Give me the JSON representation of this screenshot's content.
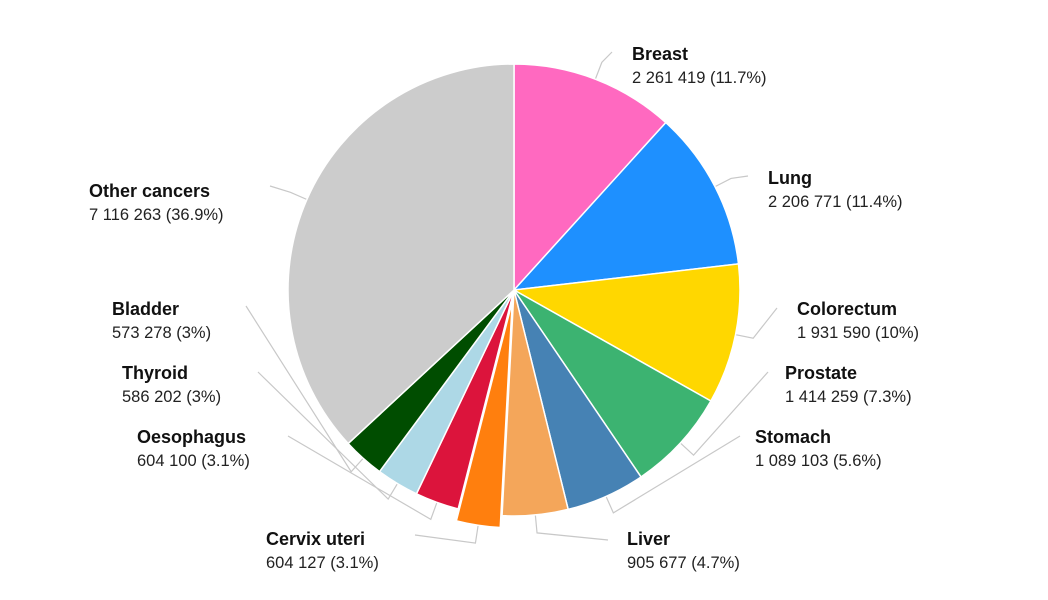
{
  "chart_data": {
    "type": "pie",
    "title": "",
    "start_angle": "top, clockwise",
    "slices": [
      {
        "name": "Breast",
        "value": 2261419,
        "label": "2 261 419 (11.7%)",
        "color": "#ff69c0"
      },
      {
        "name": "Lung",
        "value": 2206771,
        "label": "2 206 771 (11.4%)",
        "color": "#1e90ff"
      },
      {
        "name": "Colorectum",
        "value": 1931590,
        "label": "1 931 590 (10%)",
        "color": "#ffd700"
      },
      {
        "name": "Prostate",
        "value": 1414259,
        "label": "1 414 259 (7.3%)",
        "color": "#3cb371"
      },
      {
        "name": "Stomach",
        "value": 1089103,
        "label": "1 089 103 (5.6%)",
        "color": "#4682b4"
      },
      {
        "name": "Liver",
        "value": 905677,
        "label": "905 677 (4.7%)",
        "color": "#f4a65a"
      },
      {
        "name": "Cervix uteri",
        "value": 604127,
        "label": "604 127 (3.1%)",
        "color": "#ff7f0e",
        "exploded": true
      },
      {
        "name": "Oesophagus",
        "value": 604100,
        "label": "604 100 (3.1%)",
        "color": "#dc143c"
      },
      {
        "name": "Thyroid",
        "value": 586202,
        "label": "586 202 (3%)",
        "color": "#add8e6"
      },
      {
        "name": "Bladder",
        "value": 573278,
        "label": "573 278 (3%)",
        "color": "#004d00"
      },
      {
        "name": "Other cancers",
        "value": 7116263,
        "label": "7 116 263 (36.9%)",
        "color": "#cccccc"
      }
    ]
  }
}
